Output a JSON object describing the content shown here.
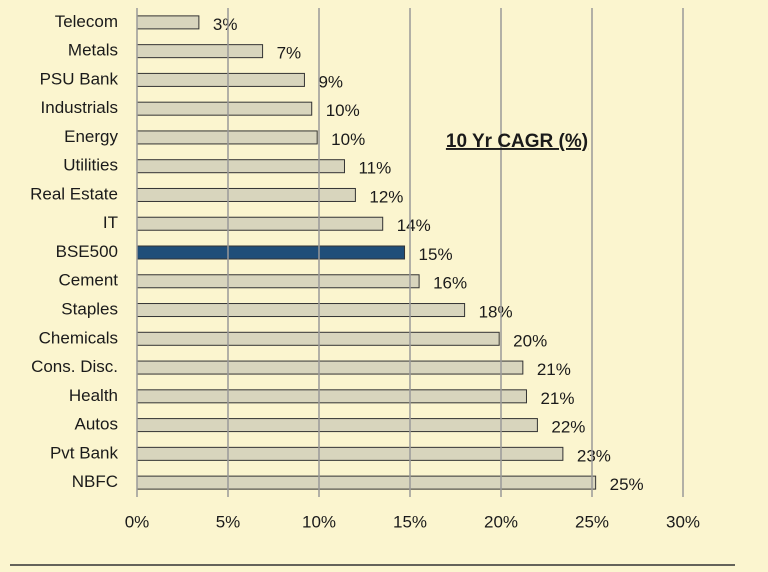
{
  "chart_data": {
    "type": "hbar",
    "annotation": "10 Yr CAGR (%)",
    "categories": [
      "Telecom",
      "Metals",
      "PSU Bank",
      "Industrials",
      "Energy",
      "Utilities",
      "Real Estate",
      "IT",
      "BSE500",
      "Cement",
      "Staples",
      "Chemicals",
      "Cons. Disc.",
      "Health",
      "Autos",
      "Pvt Bank",
      "NBFC"
    ],
    "values": [
      3.4,
      6.9,
      9.2,
      9.6,
      9.9,
      11.4,
      12.0,
      13.5,
      14.7,
      15.5,
      18.0,
      19.9,
      21.2,
      21.4,
      22.0,
      23.4,
      25.2
    ],
    "value_labels": [
      "3%",
      "7%",
      "9%",
      "10%",
      "10%",
      "11%",
      "12%",
      "14%",
      "15%",
      "16%",
      "18%",
      "20%",
      "21%",
      "21%",
      "22%",
      "23%",
      "25%"
    ],
    "colors": [
      "#d8d5bd",
      "#d8d5bd",
      "#d8d5bd",
      "#d8d5bd",
      "#d8d5bd",
      "#d8d5bd",
      "#d8d5bd",
      "#d8d5bd",
      "#1f4e79",
      "#d8d5bd",
      "#d8d5bd",
      "#d8d5bd",
      "#d8d5bd",
      "#d8d5bd",
      "#d8d5bd",
      "#d8d5bd",
      "#d8d5bd"
    ],
    "xlim": [
      0,
      30
    ],
    "xticks": [
      {
        "value": 0,
        "label": "0%"
      },
      {
        "value": 5,
        "label": "5%"
      },
      {
        "value": 10,
        "label": "10%"
      },
      {
        "value": 15,
        "label": "15%"
      },
      {
        "value": 20,
        "label": "20%"
      },
      {
        "value": 25,
        "label": "25%"
      },
      {
        "value": 30,
        "label": "30%"
      }
    ],
    "grid": true
  }
}
